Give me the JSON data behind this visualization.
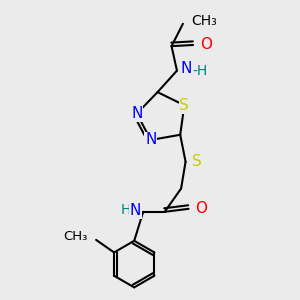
{
  "background_color": "#ebebeb",
  "colors": {
    "N": "#0000ff",
    "O": "#ff0000",
    "S": "#cccc00",
    "C": "#000000",
    "H": "#008080"
  },
  "bond_lw": 1.5,
  "font_size": 10,
  "xlim": [
    0,
    10
  ],
  "ylim": [
    0,
    10
  ],
  "figsize": [
    3.0,
    3.0
  ],
  "dpi": 100
}
